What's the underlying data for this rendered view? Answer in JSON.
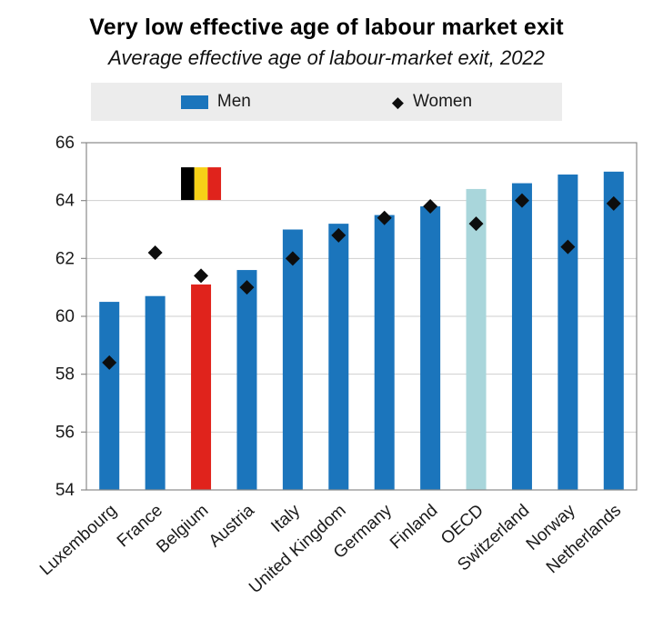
{
  "chart_data": {
    "type": "bar",
    "title": "Very low effective age of labour market exit",
    "subtitle": "Average effective age of labour-market exit, 2022",
    "categories": [
      "Luxembourg",
      "France",
      "Belgium",
      "Austria",
      "Italy",
      "United Kingdom",
      "Germany",
      "Finland",
      "OECD",
      "Switzerland",
      "Norway",
      "Netherlands"
    ],
    "series": [
      {
        "name": "Men",
        "type": "bar",
        "values": [
          60.5,
          60.7,
          61.1,
          61.6,
          63.0,
          63.2,
          63.5,
          63.8,
          64.4,
          64.6,
          64.9,
          65.0
        ]
      },
      {
        "name": "Women",
        "type": "scatter",
        "marker": "diamond",
        "values": [
          58.4,
          62.2,
          61.4,
          61.0,
          62.0,
          62.8,
          63.4,
          63.8,
          63.2,
          64.0,
          62.4,
          63.9
        ]
      }
    ],
    "ylim": [
      54,
      66
    ],
    "yticks": [
      54,
      56,
      58,
      60,
      62,
      64,
      66
    ],
    "xlabel": "",
    "ylabel": "",
    "grid": true,
    "legend_position": "top",
    "colors": {
      "men_bar": "#1b75bc",
      "belgium_bar": "#e0231c",
      "oecd_bar": "#a9d6db",
      "women_marker": "#0d0d0d",
      "gridline": "#cfcfcf",
      "frame": "#8a8a8a",
      "legend_background": "#ececec"
    },
    "highlighted_bars": {
      "Belgium": "belgium_bar",
      "OECD": "oecd_bar"
    },
    "annotations": [
      {
        "type": "flag-icon",
        "name": "belgium-flag",
        "category": "Belgium",
        "stripe_colors": [
          "#000000",
          "#f7d117",
          "#e0231c"
        ]
      }
    ]
  }
}
